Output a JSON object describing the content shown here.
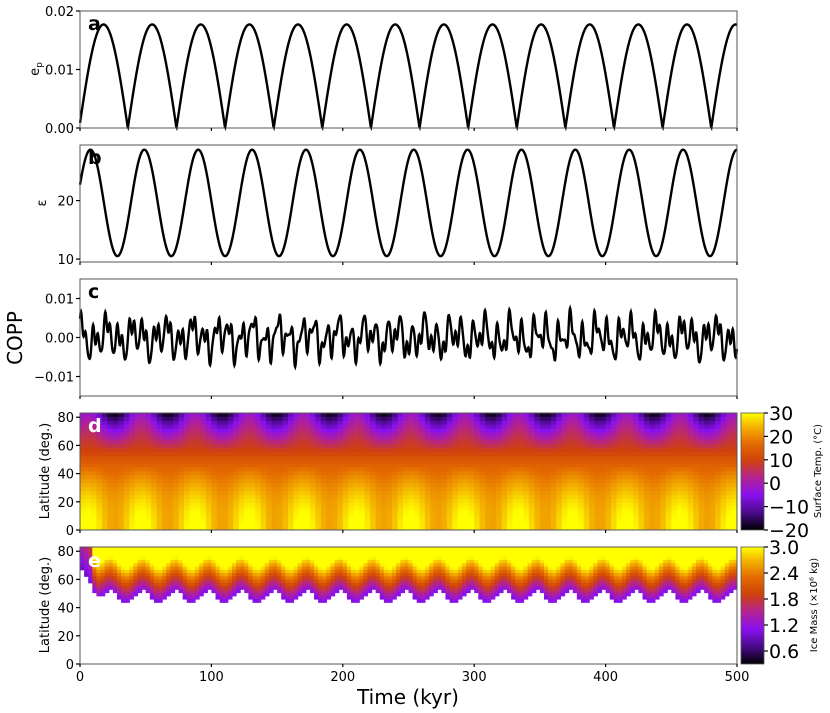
{
  "figure": {
    "xlabel": "Time (kyr)",
    "xticks": [
      "0",
      "100",
      "200",
      "300",
      "400",
      "500"
    ]
  },
  "chart_data": [
    {
      "panel": "a",
      "type": "line",
      "ylabel": "e_p",
      "xlim": [
        0,
        500
      ],
      "ylim": [
        0,
        0.02
      ],
      "yticks": [
        "0.00",
        "0.01",
        "0.02"
      ],
      "series": [
        {
          "period_kyr": 18.5,
          "min": 0.0,
          "max": 0.0177,
          "color": "#000000"
        }
      ]
    },
    {
      "panel": "b",
      "type": "line",
      "ylabel": "ε",
      "xlim": [
        0,
        500
      ],
      "ylim": [
        9.5,
        29.5
      ],
      "yticks": [
        "10",
        "20"
      ],
      "series": [
        {
          "period_kyr": 41,
          "min": 10.5,
          "max": 28.7,
          "color": "#000000"
        }
      ]
    },
    {
      "panel": "c",
      "type": "line",
      "ylabel": "COPP",
      "xlim": [
        0,
        500
      ],
      "ylim": [
        -0.015,
        0.015
      ],
      "yticks": [
        "0.01",
        "0.00",
        "−0.01"
      ],
      "series": [
        {
          "amplitude_range": [
            -0.008,
            0.008
          ],
          "color": "#000000"
        }
      ]
    },
    {
      "panel": "d",
      "type": "heatmap",
      "ylabel": "Latitude (deg.)",
      "xlim": [
        0,
        500
      ],
      "ylim": [
        0,
        83
      ],
      "yticks": [
        "0",
        "20",
        "40",
        "60",
        "80"
      ],
      "colorbar": {
        "label": "Surface Temp. (°C)",
        "colormap": "gnuplot",
        "range": [
          -20,
          30
        ],
        "ticks": [
          "30",
          "20",
          "10",
          "0",
          "−10",
          "−20"
        ]
      }
    },
    {
      "panel": "e",
      "type": "heatmap",
      "ylabel": "Latitude (deg.)",
      "xlim": [
        0,
        500
      ],
      "ylim": [
        0,
        83
      ],
      "yticks": [
        "0",
        "20",
        "40",
        "60",
        "80"
      ],
      "ice_edge_latitude": {
        "min": 44,
        "max": 52,
        "period_kyr": 25
      },
      "colorbar": {
        "label": "Ice Mass (×10⁶ kg)",
        "colormap": "gnuplot",
        "range": [
          0.3,
          3.0
        ],
        "ticks": [
          "3.0",
          "2.4",
          "1.8",
          "1.2",
          "0.6"
        ]
      }
    }
  ]
}
